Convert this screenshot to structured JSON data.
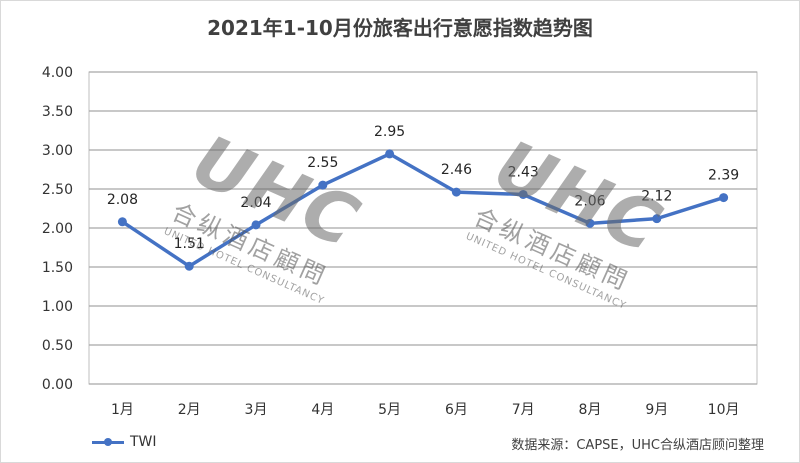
{
  "chart_data": {
    "type": "line",
    "title": "2021年1-10月份旅客出行意愿指数趋势图",
    "categories": [
      "1月",
      "2月",
      "3月",
      "4月",
      "5月",
      "6月",
      "7月",
      "8月",
      "9月",
      "10月"
    ],
    "series": [
      {
        "name": "TWI",
        "values": [
          2.08,
          1.51,
          2.04,
          2.55,
          2.95,
          2.46,
          2.43,
          2.06,
          2.12,
          2.39
        ]
      }
    ],
    "data_labels": [
      "2.08",
      "1.51",
      "2.04",
      "2.55",
      "2.95",
      "2.46",
      "2.43",
      "2.06",
      "2.12",
      "2.39"
    ],
    "ylim": [
      0,
      4
    ],
    "y_ticks": [
      "0.00",
      "0.50",
      "1.00",
      "1.50",
      "2.00",
      "2.50",
      "3.00",
      "3.50",
      "4.00"
    ],
    "grid": true,
    "legend_position": "bottom-left",
    "line_color": "#4472c4"
  },
  "source_note": "数据来源：CAPSE，UHC合纵酒店顾问整理",
  "watermark": {
    "logo": "UHC",
    "chinese": "合纵酒店顧問",
    "english": "UNITED HOTEL CONSULTANCY"
  }
}
